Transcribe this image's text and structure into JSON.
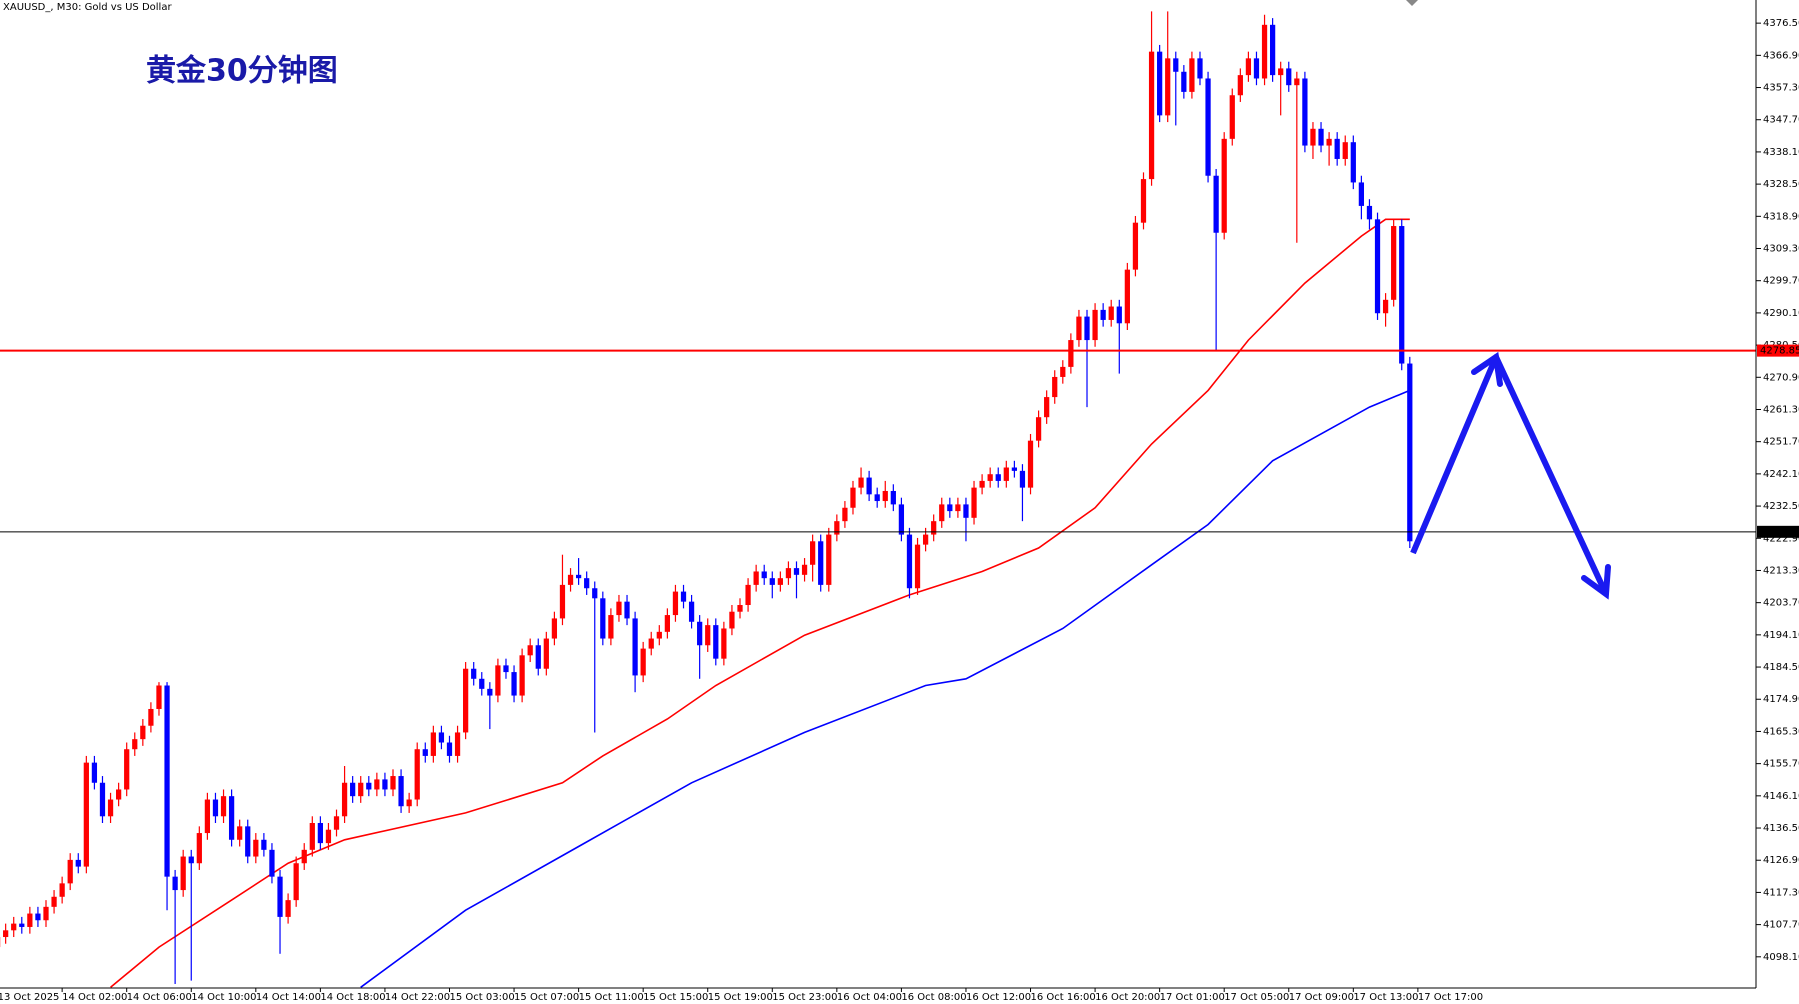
{
  "chart_data": {
    "type": "candlestick",
    "title": "黄金30分钟图",
    "subtitle": "XAUUSD_, M30:  Gold vs US Dollar",
    "up_color": "#ff0000",
    "down_color": "#0000ff",
    "ohlc": [
      [
        4101,
        4108,
        4091,
        4104
      ],
      [
        4104,
        4108,
        4102,
        4106
      ],
      [
        4106,
        4110,
        4104,
        4108
      ],
      [
        4108,
        4110,
        4105,
        4107
      ],
      [
        4107,
        4113,
        4105,
        4111
      ],
      [
        4111,
        4113,
        4107,
        4109
      ],
      [
        4109,
        4115,
        4107,
        4113
      ],
      [
        4113,
        4118,
        4111,
        4116
      ],
      [
        4116,
        4122,
        4114,
        4120
      ],
      [
        4120,
        4129,
        4118,
        4127
      ],
      [
        4127,
        4129,
        4123,
        4125
      ],
      [
        4125,
        4158,
        4123,
        4156
      ],
      [
        4156,
        4158,
        4148,
        4150
      ],
      [
        4150,
        4152,
        4138,
        4140
      ],
      [
        4140,
        4147,
        4138,
        4145
      ],
      [
        4145,
        4150,
        4143,
        4148
      ],
      [
        4148,
        4162,
        4146,
        4160
      ],
      [
        4160,
        4165,
        4158,
        4163
      ],
      [
        4163,
        4169,
        4161,
        4167
      ],
      [
        4167,
        4174,
        4165,
        4172
      ],
      [
        4172,
        4180,
        4170,
        4179
      ],
      [
        4179,
        4180,
        4112,
        4122
      ],
      [
        4122,
        4124,
        4090,
        4118
      ],
      [
        4118,
        4130,
        4116,
        4128
      ],
      [
        4128,
        4130,
        4091,
        4126
      ],
      [
        4126,
        4137,
        4124,
        4135
      ],
      [
        4135,
        4147,
        4133,
        4145
      ],
      [
        4145,
        4147,
        4138,
        4140
      ],
      [
        4140,
        4148,
        4138,
        4146
      ],
      [
        4146,
        4148,
        4131,
        4133
      ],
      [
        4133,
        4139,
        4131,
        4137
      ],
      [
        4137,
        4139,
        4126,
        4128
      ],
      [
        4128,
        4135,
        4126,
        4133
      ],
      [
        4133,
        4135,
        4128,
        4130
      ],
      [
        4130,
        4132,
        4120,
        4122
      ],
      [
        4122,
        4124,
        4099,
        4110
      ],
      [
        4110,
        4117,
        4108,
        4115
      ],
      [
        4115,
        4128,
        4113,
        4126
      ],
      [
        4126,
        4132,
        4124,
        4130
      ],
      [
        4130,
        4140,
        4128,
        4138
      ],
      [
        4138,
        4140,
        4130,
        4132
      ],
      [
        4132,
        4138,
        4130,
        4136
      ],
      [
        4136,
        4142,
        4134,
        4140
      ],
      [
        4140,
        4155,
        4138,
        4150
      ],
      [
        4150,
        4152,
        4144,
        4146
      ],
      [
        4146,
        4152,
        4144,
        4150
      ],
      [
        4150,
        4152,
        4146,
        4148
      ],
      [
        4148,
        4153,
        4146,
        4151
      ],
      [
        4151,
        4153,
        4146,
        4148
      ],
      [
        4148,
        4154,
        4146,
        4152
      ],
      [
        4152,
        4154,
        4141,
        4143
      ],
      [
        4143,
        4147,
        4141,
        4145
      ],
      [
        4145,
        4162,
        4143,
        4160
      ],
      [
        4160,
        4162,
        4156,
        4158
      ],
      [
        4158,
        4167,
        4156,
        4165
      ],
      [
        4165,
        4167,
        4160,
        4162
      ],
      [
        4162,
        4164,
        4156,
        4158
      ],
      [
        4158,
        4167,
        4156,
        4165
      ],
      [
        4165,
        4186,
        4163,
        4184
      ],
      [
        4184,
        4186,
        4179,
        4181
      ],
      [
        4181,
        4183,
        4176,
        4178
      ],
      [
        4178,
        4180,
        4166,
        4176
      ],
      [
        4176,
        4187,
        4174,
        4185
      ],
      [
        4185,
        4187,
        4181,
        4183
      ],
      [
        4183,
        4185,
        4174,
        4176
      ],
      [
        4176,
        4190,
        4174,
        4188
      ],
      [
        4188,
        4193,
        4186,
        4191
      ],
      [
        4191,
        4193,
        4182,
        4184
      ],
      [
        4184,
        4195,
        4182,
        4193
      ],
      [
        4193,
        4201,
        4191,
        4199
      ],
      [
        4199,
        4218,
        4197,
        4209
      ],
      [
        4209,
        4214,
        4207,
        4212
      ],
      [
        4212,
        4217,
        4209,
        4211
      ],
      [
        4211,
        4213,
        4206,
        4208
      ],
      [
        4208,
        4210,
        4165,
        4205
      ],
      [
        4205,
        4207,
        4191,
        4193
      ],
      [
        4193,
        4202,
        4191,
        4200
      ],
      [
        4200,
        4206,
        4198,
        4204
      ],
      [
        4204,
        4206,
        4197,
        4199
      ],
      [
        4199,
        4201,
        4177,
        4182
      ],
      [
        4182,
        4192,
        4180,
        4190
      ],
      [
        4190,
        4195,
        4188,
        4193
      ],
      [
        4193,
        4197,
        4191,
        4195
      ],
      [
        4195,
        4202,
        4193,
        4200
      ],
      [
        4200,
        4209,
        4198,
        4207
      ],
      [
        4207,
        4209,
        4202,
        4204
      ],
      [
        4204,
        4206,
        4196,
        4198
      ],
      [
        4198,
        4200,
        4181,
        4191
      ],
      [
        4191,
        4199,
        4189,
        4197
      ],
      [
        4197,
        4199,
        4185,
        4187
      ],
      [
        4187,
        4198,
        4185,
        4196
      ],
      [
        4196,
        4203,
        4194,
        4201
      ],
      [
        4201,
        4205,
        4199,
        4203
      ],
      [
        4203,
        4211,
        4201,
        4209
      ],
      [
        4209,
        4215,
        4207,
        4213
      ],
      [
        4213,
        4215,
        4209,
        4211
      ],
      [
        4211,
        4213,
        4205,
        4209
      ],
      [
        4209,
        4213,
        4207,
        4211
      ],
      [
        4211,
        4216,
        4209,
        4214
      ],
      [
        4214,
        4216,
        4205,
        4212
      ],
      [
        4212,
        4217,
        4210,
        4215
      ],
      [
        4215,
        4224,
        4210,
        4222
      ],
      [
        4222,
        4224,
        4207,
        4209
      ],
      [
        4209,
        4226,
        4207,
        4224
      ],
      [
        4224,
        4230,
        4222,
        4228
      ],
      [
        4228,
        4234,
        4226,
        4232
      ],
      [
        4232,
        4240,
        4230,
        4238
      ],
      [
        4238,
        4244,
        4236,
        4241
      ],
      [
        4241,
        4243,
        4234,
        4236
      ],
      [
        4236,
        4238,
        4232,
        4234
      ],
      [
        4234,
        4240,
        4232,
        4237
      ],
      [
        4237,
        4239,
        4231,
        4233
      ],
      [
        4233,
        4235,
        4222,
        4224
      ],
      [
        4224,
        4226,
        4205,
        4208
      ],
      [
        4208,
        4223,
        4206,
        4221
      ],
      [
        4221,
        4226,
        4219,
        4224
      ],
      [
        4224,
        4230,
        4222,
        4228
      ],
      [
        4228,
        4235,
        4226,
        4233
      ],
      [
        4233,
        4235,
        4229,
        4231
      ],
      [
        4231,
        4235,
        4229,
        4233
      ],
      [
        4233,
        4235,
        4222,
        4229
      ],
      [
        4229,
        4240,
        4227,
        4238
      ],
      [
        4238,
        4242,
        4236,
        4240
      ],
      [
        4240,
        4244,
        4238,
        4242
      ],
      [
        4242,
        4244,
        4238,
        4240
      ],
      [
        4240,
        4246,
        4238,
        4244
      ],
      [
        4244,
        4246,
        4241,
        4243
      ],
      [
        4243,
        4245,
        4228,
        4238
      ],
      [
        4238,
        4254,
        4236,
        4252
      ],
      [
        4252,
        4261,
        4250,
        4259
      ],
      [
        4259,
        4267,
        4257,
        4265
      ],
      [
        4265,
        4273,
        4263,
        4271
      ],
      [
        4271,
        4276,
        4269,
        4274
      ],
      [
        4274,
        4284,
        4272,
        4282
      ],
      [
        4282,
        4291,
        4280,
        4289
      ],
      [
        4289,
        4291,
        4262,
        4282
      ],
      [
        4282,
        4293,
        4280,
        4291
      ],
      [
        4291,
        4293,
        4286,
        4288
      ],
      [
        4288,
        4294,
        4286,
        4292
      ],
      [
        4292,
        4294,
        4272,
        4287
      ],
      [
        4287,
        4305,
        4285,
        4303
      ],
      [
        4303,
        4319,
        4301,
        4317
      ],
      [
        4317,
        4332,
        4315,
        4330
      ],
      [
        4330,
        4380,
        4328,
        4368
      ],
      [
        4368,
        4370,
        4347,
        4349
      ],
      [
        4349,
        4380,
        4347,
        4366
      ],
      [
        4366,
        4368,
        4346,
        4362
      ],
      [
        4362,
        4364,
        4354,
        4356
      ],
      [
        4356,
        4368,
        4354,
        4366
      ],
      [
        4366,
        4368,
        4358,
        4360
      ],
      [
        4360,
        4362,
        4329,
        4331
      ],
      [
        4331,
        4333,
        4279,
        4314
      ],
      [
        4314,
        4344,
        4312,
        4342
      ],
      [
        4342,
        4357,
        4340,
        4355
      ],
      [
        4355,
        4363,
        4353,
        4361
      ],
      [
        4361,
        4368,
        4359,
        4366
      ],
      [
        4366,
        4368,
        4358,
        4360
      ],
      [
        4360,
        4379,
        4358,
        4376
      ],
      [
        4376,
        4378,
        4359,
        4361
      ],
      [
        4361,
        4365,
        4349,
        4363
      ],
      [
        4363,
        4365,
        4356,
        4358
      ],
      [
        4358,
        4362,
        4311,
        4360
      ],
      [
        4360,
        4362,
        4338,
        4340
      ],
      [
        4340,
        4347,
        4336,
        4345
      ],
      [
        4345,
        4347,
        4338,
        4340
      ],
      [
        4340,
        4344,
        4334,
        4342
      ],
      [
        4342,
        4344,
        4334,
        4336
      ],
      [
        4336,
        4343,
        4334,
        4341
      ],
      [
        4341,
        4343,
        4327,
        4329
      ],
      [
        4329,
        4331,
        4318,
        4322
      ],
      [
        4322,
        4324,
        4315,
        4318
      ],
      [
        4318,
        4320,
        4288,
        4290
      ],
      [
        4290,
        4296,
        4286,
        4294
      ],
      [
        4294,
        4318,
        4292,
        4316
      ],
      [
        4316,
        4318,
        4273,
        4275
      ],
      [
        4275,
        4277,
        4220,
        4222
      ]
    ],
    "series": [
      {
        "type": "line",
        "color": "#ff0000",
        "x": [
          14,
          20,
          29,
          36,
          43,
          58,
          70,
          75,
          83,
          89,
          100,
          113,
          122,
          129,
          136,
          143,
          150,
          155,
          162,
          169,
          172,
          175
        ],
        "values": [
          4089,
          4101,
          4115,
          4126,
          4133,
          4141,
          4150,
          4158,
          4169,
          4179,
          4194,
          4206,
          4213,
          4220,
          4232,
          4251,
          4267,
          4282,
          4299,
          4313,
          4318,
          4318
        ]
      },
      {
        "type": "line",
        "color": "#0000ff",
        "x": [
          45,
          58,
          72,
          86,
          100,
          115,
          120,
          132,
          143,
          150,
          158,
          170,
          175
        ],
        "values": [
          4089,
          4112,
          4131,
          4150,
          4165,
          4179,
          4181,
          4196,
          4215,
          4227,
          4246,
          4262,
          4267
        ]
      }
    ],
    "hlines": [
      {
        "value": 4278.85,
        "color": "#ff0000"
      },
      {
        "value": 4224.82,
        "color": "#000000"
      }
    ],
    "xlim": [
      0.3,
      217.9
    ],
    "xticks": [
      {
        "value": 0,
        "label": "13 Oct 2025"
      },
      {
        "value": 8,
        "label": "14 Oct 02:00"
      },
      {
        "value": 16,
        "label": "14 Oct 06:00"
      },
      {
        "value": 24,
        "label": "14 Oct 10:00"
      },
      {
        "value": 32,
        "label": "14 Oct 14:00"
      },
      {
        "value": 40,
        "label": "14 Oct 18:00"
      },
      {
        "value": 48,
        "label": "14 Oct 22:00"
      },
      {
        "value": 56,
        "label": "15 Oct 03:00"
      },
      {
        "value": 64,
        "label": "15 Oct 07:00"
      },
      {
        "value": 72,
        "label": "15 Oct 11:00"
      },
      {
        "value": 80,
        "label": "15 Oct 15:00"
      },
      {
        "value": 88,
        "label": "15 Oct 19:00"
      },
      {
        "value": 96,
        "label": "15 Oct 23:00"
      },
      {
        "value": 104,
        "label": "16 Oct 04:00"
      },
      {
        "value": 112,
        "label": "16 Oct 08:00"
      },
      {
        "value": 120,
        "label": "16 Oct 12:00"
      },
      {
        "value": 128,
        "label": "16 Oct 16:00"
      },
      {
        "value": 136,
        "label": "16 Oct 20:00"
      },
      {
        "value": 144,
        "label": "17 Oct 01:00"
      },
      {
        "value": 152,
        "label": "17 Oct 05:00"
      },
      {
        "value": 160,
        "label": "17 Oct 09:00"
      },
      {
        "value": 168,
        "label": "17 Oct 13:00"
      },
      {
        "value": 176,
        "label": "17 Oct 17:00"
      }
    ],
    "ylim": [
      4088.8,
      4383.4
    ],
    "yticks": [
      {
        "value": 4098.1,
        "label": "4098.10"
      },
      {
        "value": 4107.7,
        "label": "4107.70"
      },
      {
        "value": 4117.3,
        "label": "4117.30"
      },
      {
        "value": 4126.9,
        "label": "4126.90"
      },
      {
        "value": 4136.5,
        "label": "4136.50"
      },
      {
        "value": 4146.1,
        "label": "4146.10"
      },
      {
        "value": 4155.7,
        "label": "4155.70"
      },
      {
        "value": 4165.3,
        "label": "4165.30"
      },
      {
        "value": 4174.9,
        "label": "4174.90"
      },
      {
        "value": 4184.5,
        "label": "4184.50"
      },
      {
        "value": 4194.1,
        "label": "4194.10"
      },
      {
        "value": 4203.7,
        "label": "4203.70"
      },
      {
        "value": 4213.3,
        "label": "4213.30"
      },
      {
        "value": 4222.9,
        "label": "4222.90"
      },
      {
        "value": 4232.5,
        "label": "4232.50"
      },
      {
        "value": 4242.1,
        "label": "4242.10"
      },
      {
        "value": 4251.7,
        "label": "4251.70"
      },
      {
        "value": 4261.3,
        "label": "4261.30"
      },
      {
        "value": 4270.9,
        "label": "4270.90"
      },
      {
        "value": 4280.5,
        "label": "4280.50"
      },
      {
        "value": 4290.1,
        "label": "4290.10"
      },
      {
        "value": 4299.7,
        "label": "4299.70"
      },
      {
        "value": 4309.3,
        "label": "4309.30"
      },
      {
        "value": 4318.9,
        "label": "4318.90"
      },
      {
        "value": 4328.5,
        "label": "4328.50"
      },
      {
        "value": 4338.1,
        "label": "4338.10"
      },
      {
        "value": 4347.7,
        "label": "4347.70"
      },
      {
        "value": 4357.3,
        "label": "4357.30"
      },
      {
        "value": 4366.9,
        "label": "4366.90"
      },
      {
        "value": 4376.5,
        "label": "4376.50"
      }
    ],
    "grid": false
  }
}
